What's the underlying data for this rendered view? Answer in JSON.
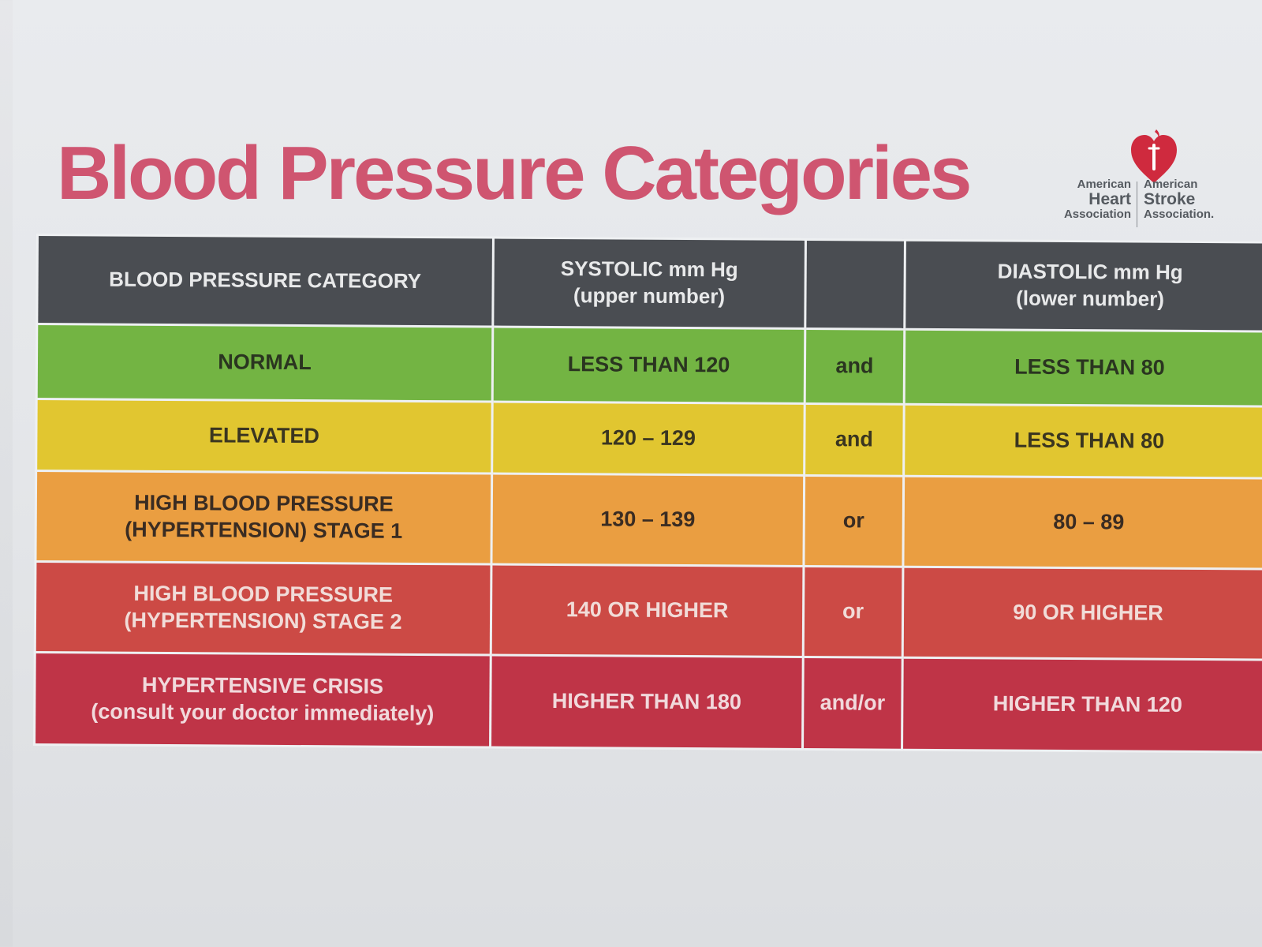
{
  "title": "Blood Pressure Categories",
  "logo": {
    "aha": {
      "line1": "American",
      "line2": "Heart",
      "line3": "Association"
    },
    "asa": {
      "line1": "American",
      "line2": "Stroke",
      "line3": "Association."
    },
    "color": "#cf2a3e"
  },
  "table": {
    "headers": {
      "category": "BLOOD PRESSURE CATEGORY",
      "systolic": "SYSTOLIC mm Hg",
      "systolic_sub": "(upper number)",
      "connector": "",
      "diastolic": "DIASTOLIC mm Hg",
      "diastolic_sub": "(lower number)"
    },
    "rows": [
      {
        "category": "NORMAL",
        "category_line2": "",
        "systolic": "LESS THAN 120",
        "connector": "and",
        "diastolic": "LESS THAN 80",
        "color": "#73b443"
      },
      {
        "category": "ELEVATED",
        "category_line2": "",
        "systolic": "120 – 129",
        "connector": "and",
        "diastolic": "LESS THAN 80",
        "color": "#e1c630"
      },
      {
        "category": "HIGH BLOOD PRESSURE",
        "category_line2": "(HYPERTENSION) STAGE 1",
        "systolic": "130 – 139",
        "connector": "or",
        "diastolic": "80 – 89",
        "color": "#ea9e41"
      },
      {
        "category": "HIGH BLOOD PRESSURE",
        "category_line2": "(HYPERTENSION) STAGE 2",
        "systolic": "140 OR HIGHER",
        "connector": "or",
        "diastolic": "90 OR HIGHER",
        "color": "#cc4a45"
      },
      {
        "category": "HYPERTENSIVE CRISIS",
        "category_line2": "(consult your doctor immediately)",
        "systolic": "HIGHER THAN 180",
        "connector": "and/or",
        "diastolic": "HIGHER THAN 120",
        "color": "#bf3447"
      }
    ]
  },
  "colors": {
    "title": "#cf5570",
    "header_bg": "#4a4d52"
  }
}
